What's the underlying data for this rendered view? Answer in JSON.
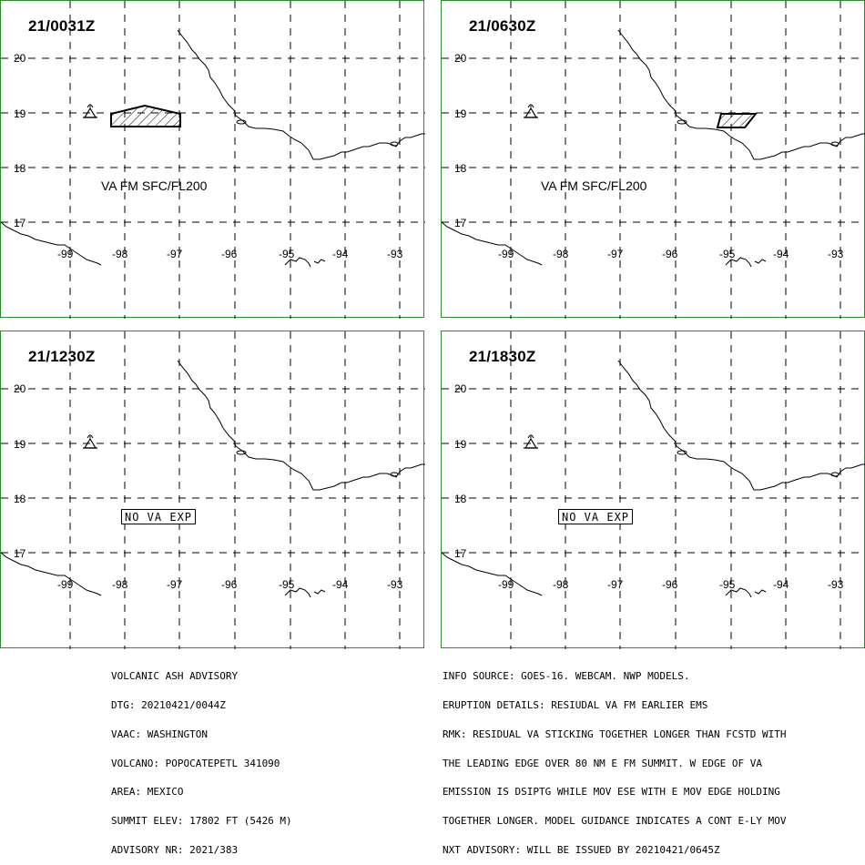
{
  "panels": [
    {
      "time": "21/0031Z",
      "va_label": "VA FM SFC/FL200",
      "lat_labels": [
        "20",
        "19",
        "18",
        "17"
      ],
      "lon_labels": [
        "-99",
        "-98",
        "-97",
        "-96",
        "-95",
        "-94",
        "-93"
      ]
    },
    {
      "time": "21/0630Z",
      "va_label": "VA FM SFC/FL200",
      "lat_labels": [
        "20",
        "19",
        "18",
        "17"
      ],
      "lon_labels": [
        "-99",
        "-98",
        "-97",
        "-96",
        "-95",
        "-94",
        "-93"
      ]
    },
    {
      "time": "21/1230Z",
      "va_label": "NO VA EXP",
      "lat_labels": [
        "20",
        "19",
        "18",
        "17"
      ],
      "lon_labels": [
        "-99",
        "-98",
        "-97",
        "-96",
        "-95",
        "-94",
        "-93"
      ]
    },
    {
      "time": "21/1830Z",
      "va_label": "NO VA EXP",
      "lat_labels": [
        "20",
        "19",
        "18",
        "17"
      ],
      "lon_labels": [
        "-99",
        "-98",
        "-97",
        "-96",
        "-95",
        "-94",
        "-93"
      ]
    }
  ],
  "advisory_left": [
    "VOLCANIC ASH ADVISORY",
    "DTG: 20210421/0044Z",
    "VAAC: WASHINGTON",
    "VOLCANO: POPOCATEPETL 341090",
    "AREA: MEXICO",
    "SUMMIT ELEV: 17802 FT (5426 M)",
    "ADVISORY NR: 2021/383"
  ],
  "advisory_right": [
    "INFO SOURCE: GOES-16. WEBCAM. NWP MODELS.",
    "ERUPTION DETAILS: RESIUDAL VA FM EARLIER EMS",
    "RMK: RESIDUAL VA STICKING TOGETHER LONGER THAN FCSTD WITH",
    "THE LEADING EDGE OVER 80 NM E FM SUMMIT. W EDGE OF VA",
    "EMISSION IS DSIPTG WHILE MOV ESE WITH E MOV EDGE HOLDING",
    "TOGETHER LONGER. MODEL GUIDANCE INDICATES A CONT E-LY MOV",
    "NXT ADVISORY: WILL BE ISSUED BY 20210421/0645Z"
  ],
  "colors": {
    "panel_border": "#2e8b2e",
    "lines": "#000000",
    "background": "#ffffff"
  },
  "icons": {
    "volcano": "volcano-icon"
  }
}
